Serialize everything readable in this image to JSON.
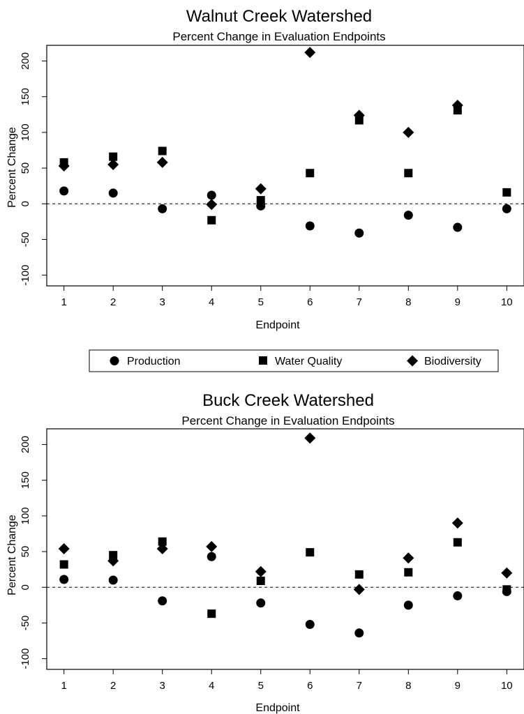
{
  "legend": {
    "items": [
      {
        "label": "Production",
        "marker": "circle"
      },
      {
        "label": "Water Quality",
        "marker": "square"
      },
      {
        "label": "Biodiversity",
        "marker": "diamond"
      }
    ]
  },
  "chart_data": [
    {
      "type": "scatter",
      "title": "Walnut Creek Watershed",
      "subtitle": "Percent Change in Evaluation Endpoints",
      "xlabel": "Endpoint",
      "ylabel": "Percent Change",
      "x": [
        1,
        2,
        3,
        4,
        5,
        6,
        7,
        8,
        9,
        10
      ],
      "xlim": [
        0.65,
        10.35
      ],
      "ylim": [
        -115,
        222
      ],
      "xticks": [
        1,
        2,
        3,
        4,
        5,
        6,
        7,
        8,
        9,
        10
      ],
      "yticks": [
        -100,
        -50,
        0,
        50,
        100,
        150,
        200
      ],
      "reference_line": 0,
      "series": [
        {
          "name": "Production",
          "marker": "circle",
          "values": [
            18,
            15,
            -7,
            12,
            -3,
            -31,
            -41,
            -16,
            -33,
            -7
          ]
        },
        {
          "name": "Water Quality",
          "marker": "square",
          "values": [
            58,
            66,
            74,
            -23,
            5,
            43,
            117,
            43,
            131,
            16
          ]
        },
        {
          "name": "Biodiversity",
          "marker": "diamond",
          "values": [
            53,
            55,
            58,
            -1,
            21,
            212,
            124,
            100,
            138,
            null
          ]
        }
      ]
    },
    {
      "type": "scatter",
      "title": "Buck Creek Watershed",
      "subtitle": "Percent Change in Evaluation Endpoints",
      "xlabel": "Endpoint",
      "ylabel": "Percent Change",
      "x": [
        1,
        2,
        3,
        4,
        5,
        6,
        7,
        8,
        9,
        10
      ],
      "xlim": [
        0.65,
        10.35
      ],
      "ylim": [
        -115,
        222
      ],
      "xticks": [
        1,
        2,
        3,
        4,
        5,
        6,
        7,
        8,
        9,
        10
      ],
      "yticks": [
        -100,
        -50,
        0,
        50,
        100,
        150,
        200
      ],
      "reference_line": 0,
      "series": [
        {
          "name": "Production",
          "marker": "circle",
          "values": [
            11,
            10,
            -19,
            43,
            -22,
            -52,
            -64,
            -25,
            -12,
            -6
          ]
        },
        {
          "name": "Water Quality",
          "marker": "square",
          "values": [
            32,
            45,
            64,
            -37,
            9,
            49,
            18,
            21,
            63,
            -3
          ]
        },
        {
          "name": "Biodiversity",
          "marker": "diamond",
          "values": [
            54,
            37,
            54,
            57,
            22,
            209,
            -3,
            41,
            90,
            20
          ]
        }
      ]
    }
  ]
}
